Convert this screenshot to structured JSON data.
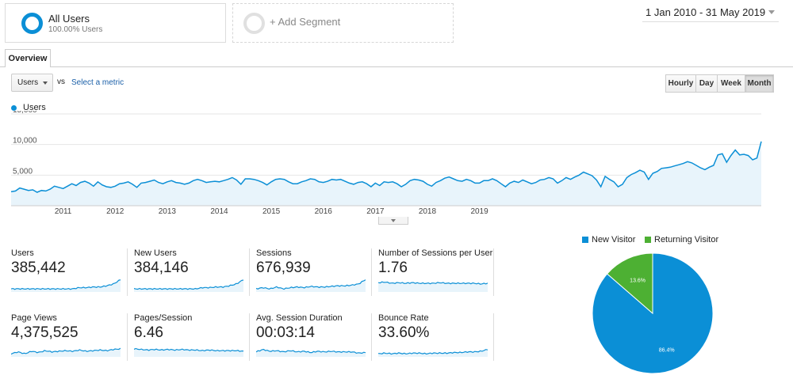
{
  "segments": {
    "all_users": {
      "title": "All Users",
      "subtitle": "100.00% Users"
    },
    "add_segment_label": "+ Add Segment"
  },
  "date_range": "1 Jan 2010 - 31 May 2019",
  "tabs": [
    {
      "label": "Overview",
      "active": true
    }
  ],
  "controls": {
    "metric_select": "Users",
    "vs_label": "vs",
    "select_metric_link": "Select a metric",
    "granularity": [
      "Hourly",
      "Day",
      "Week",
      "Month"
    ],
    "granularity_active": "Month"
  },
  "colors": {
    "accent": "#0b8fd6",
    "returning": "#4db033",
    "area_fill": "#e8f4fb"
  },
  "chart_data": [
    {
      "type": "area",
      "series": [
        {
          "name": "Users"
        }
      ],
      "x_tick_labels": [
        "2011",
        "2012",
        "2013",
        "2014",
        "2015",
        "2016",
        "2017",
        "2018",
        "2019"
      ],
      "y_tick_labels": [
        "5,000",
        "10,000",
        "15,000"
      ],
      "ylim": [
        0,
        15000
      ],
      "x_start": "2010-01",
      "x_end": "2019-05",
      "values": [
        2300,
        2400,
        2900,
        2700,
        2500,
        2600,
        2200,
        2500,
        2400,
        2700,
        3200,
        3000,
        2800,
        3200,
        3600,
        3300,
        3800,
        4000,
        3700,
        3200,
        3900,
        3400,
        3100,
        3000,
        3200,
        3600,
        3700,
        3900,
        3500,
        3000,
        3700,
        3800,
        4000,
        4200,
        3800,
        3600,
        3900,
        4100,
        3800,
        3700,
        3500,
        3700,
        4100,
        4300,
        4100,
        3800,
        3900,
        4000,
        3900,
        4100,
        4300,
        4600,
        4200,
        3500,
        4400,
        4400,
        4300,
        4100,
        3800,
        3400,
        3900,
        4300,
        4400,
        4300,
        3900,
        3600,
        3600,
        3900,
        4100,
        4400,
        4300,
        3900,
        3800,
        4000,
        4300,
        4200,
        4300,
        4000,
        3700,
        3500,
        3800,
        3900,
        3600,
        3100,
        3700,
        3300,
        3900,
        3800,
        3900,
        3600,
        3100,
        3500,
        4100,
        4300,
        4200,
        4000,
        3500,
        3200,
        3800,
        4100,
        4500,
        4700,
        4400,
        4100,
        4000,
        4300,
        4100,
        3700,
        3700,
        4100,
        4100,
        4400,
        4100,
        3600,
        3100,
        3700,
        4000,
        3800,
        4200,
        3900,
        3600,
        3800,
        4200,
        4300,
        4600,
        4400,
        3700,
        4100,
        4600,
        4300,
        4700,
        5000,
        5500,
        5200,
        4900,
        4200,
        3100,
        4800,
        4300,
        3900,
        3100,
        3500,
        4600,
        5100,
        5400,
        5800,
        5500,
        4300,
        5300,
        5600,
        6100,
        6200,
        6300,
        6500,
        6700,
        6900,
        7200,
        7000,
        6600,
        6200,
        5900,
        6300,
        6600,
        8300,
        8500,
        7100,
        8200,
        9100,
        8300,
        8400,
        8200,
        7500,
        7800,
        10500
      ]
    }
  ],
  "tiles": [
    {
      "label": "Users",
      "value": "385,442"
    },
    {
      "label": "New Users",
      "value": "384,146"
    },
    {
      "label": "Sessions",
      "value": "676,939"
    },
    {
      "label": "Number of Sessions per User",
      "value": "1.76"
    },
    {
      "label": "Page Views",
      "value": "4,375,525"
    },
    {
      "label": "Pages/Session",
      "value": "6.46"
    },
    {
      "label": "Avg. Session Duration",
      "value": "00:03:14"
    },
    {
      "label": "Bounce Rate",
      "value": "33.60%"
    }
  ],
  "pie": {
    "type": "pie",
    "slices": [
      {
        "label": "New Visitor",
        "value": 86.4,
        "text": "86.4%",
        "color": "#0b8fd6"
      },
      {
        "label": "Returning Visitor",
        "value": 13.6,
        "text": "13.6%",
        "color": "#4db033"
      }
    ]
  }
}
